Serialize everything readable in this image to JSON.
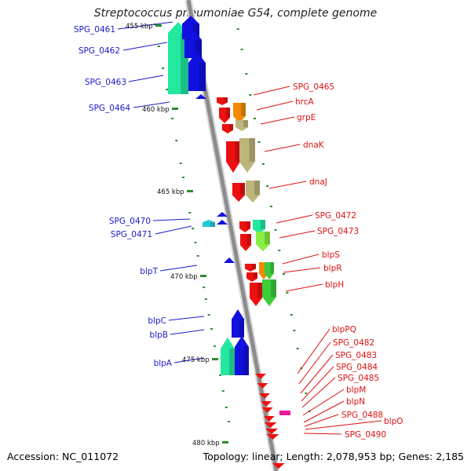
{
  "title": "Streptococcus pneumoniae G54, complete genome",
  "footer": {
    "accession": "Accession: NC_011072",
    "summary": "Topology: linear; Length: 2,078,953 bp; Genes: 2,185"
  },
  "colors": {
    "backbone": "#8c8c8c",
    "tick": "#2e8b2e",
    "left_label": "#1a1acc",
    "right_label": "#e01010",
    "blue": "#1010e0",
    "red": "#ee1010",
    "aqua": "#22e8a0",
    "orange": "#f08a00",
    "olive": "#bdb57a",
    "lime": "#88ee44",
    "green": "#3ccc3c",
    "teal": "#22c8d8",
    "magenta": "#ee1a9a"
  },
  "ruler": [
    {
      "label": "455 kbp"
    },
    {
      "label": "460 kbp"
    },
    {
      "label": "465 kbp"
    },
    {
      "label": "470 kbp"
    },
    {
      "label": "475 kbp"
    },
    {
      "label": "480 kbp"
    }
  ],
  "left_genes": [
    {
      "label": "SPG_0461"
    },
    {
      "label": "SPG_0462"
    },
    {
      "label": "SPG_0463"
    },
    {
      "label": "SPG_0464"
    },
    {
      "label": "SPG_0470"
    },
    {
      "label": "SPG_0471"
    },
    {
      "label": "blpT"
    },
    {
      "label": "blpC"
    },
    {
      "label": "blpB"
    },
    {
      "label": "blpA"
    }
  ],
  "right_genes": [
    {
      "label": "SPG_0465"
    },
    {
      "label": "hrcA"
    },
    {
      "label": "grpE"
    },
    {
      "label": "dnaK"
    },
    {
      "label": "dnaJ"
    },
    {
      "label": "SPG_0472"
    },
    {
      "label": "SPG_0473"
    },
    {
      "label": "blpS"
    },
    {
      "label": "blpR"
    },
    {
      "label": "blpH"
    },
    {
      "label": "blpPQ"
    },
    {
      "label": "SPG_0482"
    },
    {
      "label": "SPG_0483"
    },
    {
      "label": "SPG_0484"
    },
    {
      "label": "SPG_0485"
    },
    {
      "label": "blpM"
    },
    {
      "label": "blpN"
    },
    {
      "label": "SPG_0488"
    },
    {
      "label": "blpO"
    },
    {
      "label": "SPG_0490"
    }
  ]
}
